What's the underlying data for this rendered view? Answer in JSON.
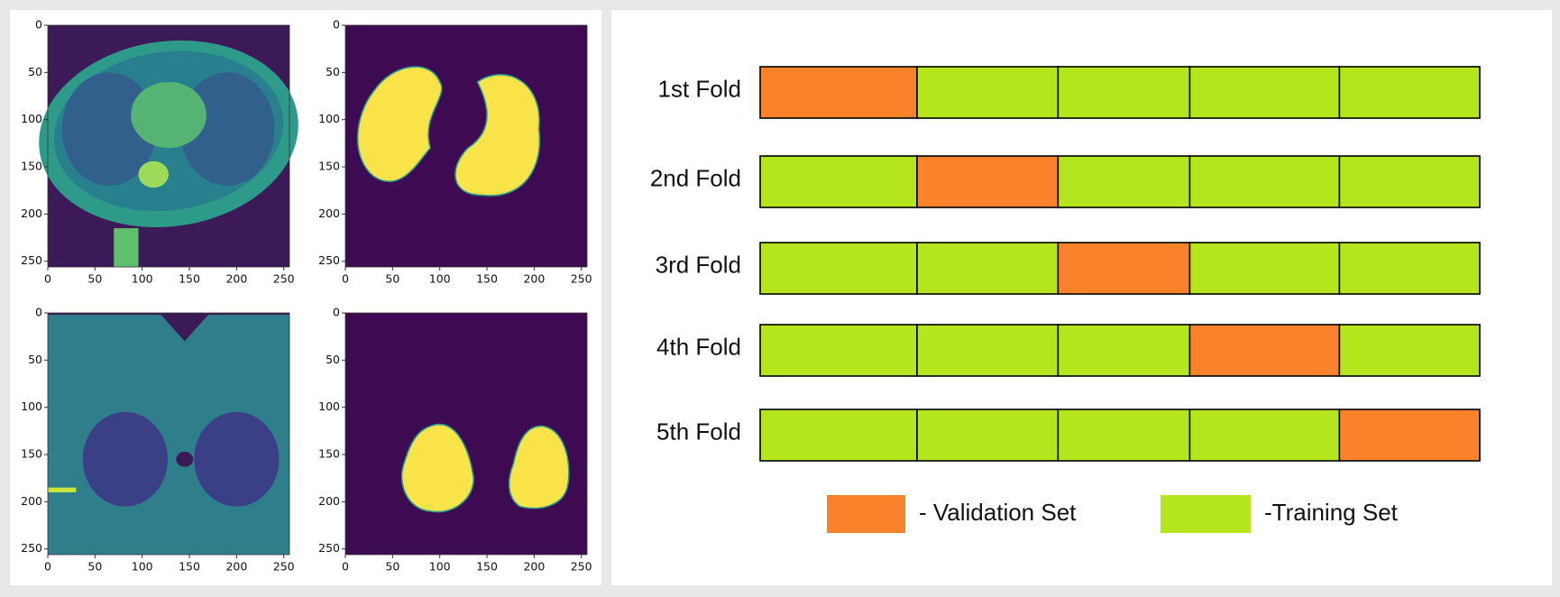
{
  "image_grid": {
    "panels": [
      {
        "xticks": [
          0,
          50,
          100,
          150,
          200,
          250
        ],
        "yticks": [
          0,
          50,
          100,
          150,
          200,
          250
        ]
      },
      {
        "xticks": [
          0,
          50,
          100,
          150,
          200,
          250
        ],
        "yticks": [
          0,
          50,
          100,
          150,
          200,
          250
        ]
      },
      {
        "xticks": [
          0,
          50,
          100,
          150,
          200,
          250
        ],
        "yticks": [
          0,
          50,
          100,
          150,
          200,
          250
        ]
      },
      {
        "xticks": [
          0,
          50,
          100,
          150,
          200,
          250
        ],
        "yticks": [
          0,
          50,
          100,
          150,
          200,
          250
        ]
      }
    ]
  },
  "folds": [
    {
      "label": "1st Fold",
      "segments": [
        "#f9822a",
        "#b5e61d",
        "#b5e61d",
        "#b5e61d",
        "#b5e61d"
      ]
    },
    {
      "label": "2nd Fold",
      "segments": [
        "#b5e61d",
        "#f9822a",
        "#b5e61d",
        "#b5e61d",
        "#b5e61d"
      ]
    },
    {
      "label": "3rd Fold",
      "segments": [
        "#b5e61d",
        "#b5e61d",
        "#f9822a",
        "#b5e61d",
        "#b5e61d"
      ]
    },
    {
      "label": "4th Fold",
      "segments": [
        "#b5e61d",
        "#b5e61d",
        "#b5e61d",
        "#f9822a",
        "#b5e61d"
      ]
    },
    {
      "label": "5th Fold",
      "segments": [
        "#b5e61d",
        "#b5e61d",
        "#b5e61d",
        "#b5e61d",
        "#f9822a"
      ]
    }
  ],
  "legend": {
    "items": [
      {
        "label": "- Validation Set",
        "color": "#f9822a"
      },
      {
        "label": "-Training Set",
        "color": "#b5e61d"
      }
    ]
  }
}
